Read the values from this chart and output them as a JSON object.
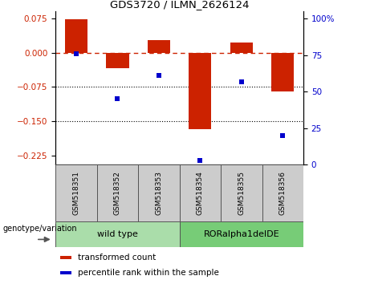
{
  "title": "GDS3720 / ILMN_2626124",
  "samples": [
    "GSM518351",
    "GSM518352",
    "GSM518353",
    "GSM518354",
    "GSM518355",
    "GSM518356"
  ],
  "bar_values": [
    0.073,
    -0.035,
    0.028,
    -0.168,
    0.022,
    -0.085
  ],
  "percentile_values": [
    76,
    45,
    61,
    3,
    57,
    20
  ],
  "bar_color": "#cc2200",
  "percentile_color": "#0000cc",
  "ylim_left": [
    -0.245,
    0.09
  ],
  "ylim_right": [
    0,
    105
  ],
  "yticks_left": [
    0.075,
    0,
    -0.075,
    -0.15,
    -0.225
  ],
  "yticks_right": [
    100,
    75,
    50,
    25,
    0
  ],
  "hline_y": 0,
  "dotted_lines": [
    -0.075,
    -0.15
  ],
  "groups": [
    {
      "label": "wild type",
      "samples": [
        0,
        1,
        2
      ],
      "color": "#aaddaa"
    },
    {
      "label": "RORalpha1delDE",
      "samples": [
        3,
        4,
        5
      ],
      "color": "#77cc77"
    }
  ],
  "group_label_prefix": "genotype/variation",
  "legend_items": [
    {
      "label": "transformed count",
      "color": "#cc2200"
    },
    {
      "label": "percentile rank within the sample",
      "color": "#0000cc"
    }
  ],
  "bar_width": 0.55,
  "background_color": "#ffffff",
  "tick_label_color_left": "#cc2200",
  "tick_label_color_right": "#0000cc",
  "sample_cell_color": "#cccccc",
  "xlim": [
    -0.5,
    5.5
  ]
}
